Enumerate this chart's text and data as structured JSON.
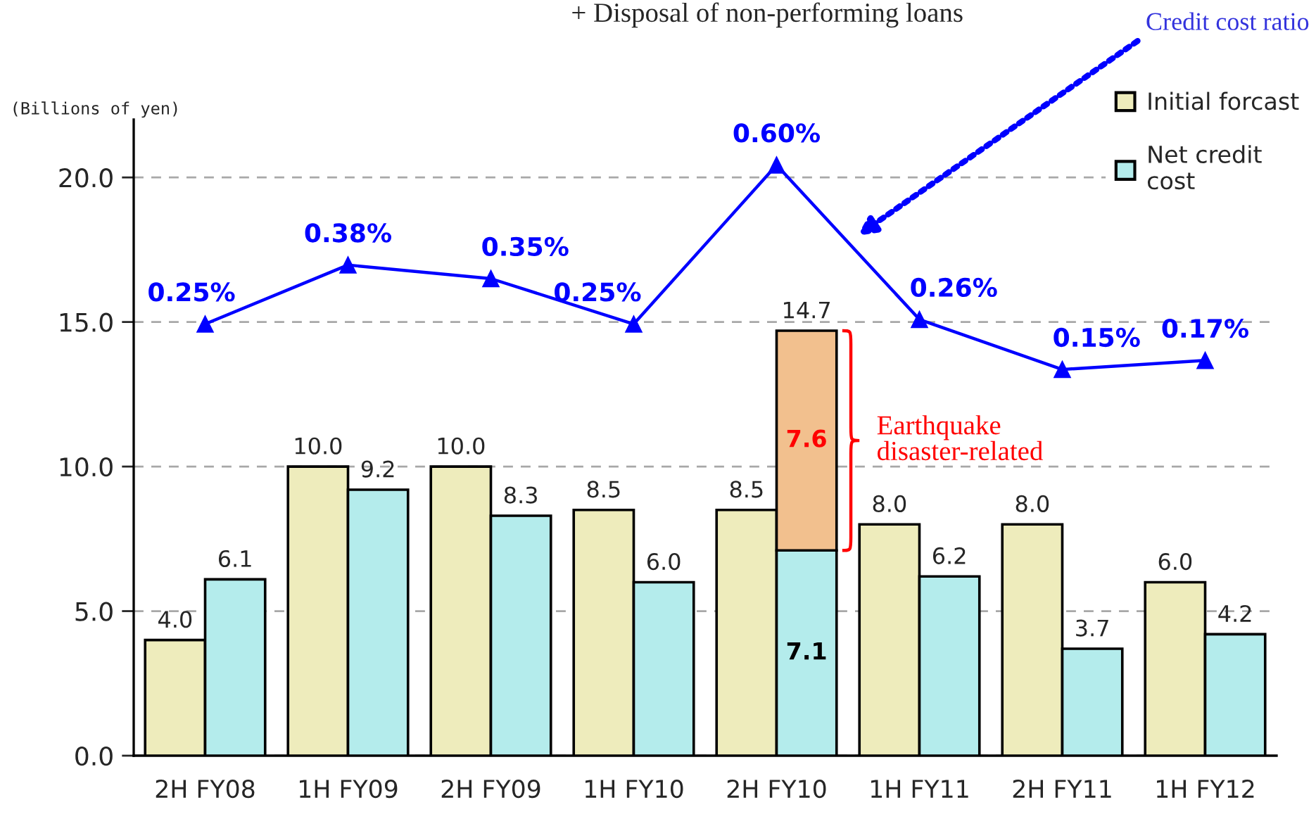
{
  "chart_data": {
    "type": "bar",
    "title": "+ Disposal of non-performing loans",
    "ylabel": "(Billions of yen)",
    "categories": [
      "2H FY08",
      "1H FY09",
      "2H FY09",
      "1H FY10",
      "2H FY10",
      "1H FY11",
      "2H FY11",
      "1H FY12"
    ],
    "series": [
      {
        "name": "Initial forcast",
        "color": "#eeecbc",
        "values": [
          4.0,
          10.0,
          10.0,
          8.5,
          8.5,
          8.0,
          8.0,
          6.0
        ],
        "value_labels": [
          "4.0",
          "10.0",
          "10.0",
          "8.5",
          "8.5",
          "8.0",
          "8.0",
          "6.0"
        ]
      },
      {
        "name": "Net credit\ncost",
        "color": "#b4ecec",
        "values": [
          6.1,
          9.2,
          8.3,
          6.0,
          7.1,
          6.2,
          3.7,
          4.2
        ],
        "value_labels": [
          "6.1",
          "9.2",
          "8.3",
          "6.0",
          "7.1",
          "6.2",
          "3.7",
          "4.2"
        ]
      },
      {
        "color": "#f2c08e",
        "values": [
          null,
          null,
          null,
          null,
          7.6,
          null,
          null,
          null
        ],
        "base": [
          null,
          null,
          null,
          null,
          7.1,
          null,
          null,
          null
        ],
        "value_labels": [
          null,
          null,
          null,
          null,
          "7.6",
          null,
          null,
          null
        ]
      },
      {
        "type": "line",
        "axis": "y2",
        "color": "#0000ff",
        "values": [
          0.25,
          0.38,
          0.35,
          0.25,
          0.6,
          0.26,
          0.15,
          0.17
        ],
        "value_labels": [
          "0.25%",
          "0.38%",
          "0.35%",
          "0.25%",
          "0.60%",
          "0.26%",
          "0.15%",
          "0.17%"
        ]
      }
    ],
    "ylim": [
      0,
      22
    ],
    "yticks": [
      {
        "value": 0,
        "label": "0.0"
      },
      {
        "value": 5,
        "label": "5.0"
      },
      {
        "value": 10,
        "label": "10.0"
      },
      {
        "value": 15,
        "label": "15.0"
      },
      {
        "value": 20,
        "label": "20.0"
      }
    ],
    "y2lim": [
      -0.7,
      0.7
    ],
    "tick_labels": [
      "x",
      "y"
    ],
    "grid": "y",
    "legend": "top right",
    "marker": "triangle",
    "annotations": [
      {
        "text": "14.7",
        "x": "2H FY10",
        "y": 14.7
      },
      "Earthquake\ndisaster-related",
      "Credit cost ratio"
    ]
  }
}
